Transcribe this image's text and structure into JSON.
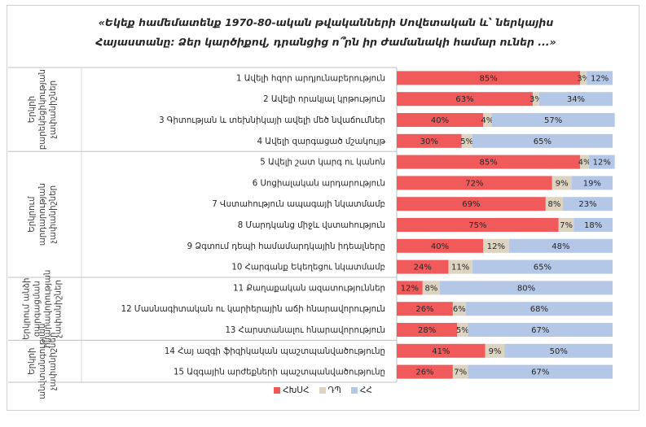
{
  "title": "«Եկեք համեմատենք 1970-80-ական թվականների Սովետական և՝ ներկայիս Հայաստանը: Ձեր կարծիքով, դրանցից ո՞րն իր ժամանակի համար ուներ ...»",
  "colors": {
    "s1": "#f15a5a",
    "s2": "#dcd3c0",
    "s3": "#b4c7e7"
  },
  "chart_data": {
    "type": "bar",
    "orientation": "horizontal",
    "stacked": true,
    "title": "«Եկեք համեմատենք 1970-80-ական թվականների Սովետական և՝ ներկայիս Հայաստանը: Ձեր կարծիքով, դրանցից ո՞րն իր ժամանակի համար ուներ ...»",
    "xlim": [
      0,
      100
    ],
    "legend_position": "bottom",
    "groups": [
      {
        "label": "Երկրի բարեկեցիկության չափանիշներ",
        "start": 0,
        "end": 3
      },
      {
        "label": "Երկրում արդարության չափանիշներ",
        "start": 4,
        "end": 9
      },
      {
        "label": "Երկրում անձի զարգացման հնարավորության չափանիշներ",
        "start": 10,
        "end": 12
      },
      {
        "label": "Երկրի անվտանգության չափանիշներ",
        "start": 13,
        "end": 14
      }
    ],
    "categories": [
      "1 Ավելի հզոր արդյունաբերություն",
      "2 Ավելի որակյալ կրթություն",
      "3 Գիտության և տեխնիկայի ավելի մեծ նվաճումներ",
      "4 Ավելի զարգացած մշակույթ",
      "5 Ավելի շատ կարգ ու կանոն",
      "6 Սոցիալական արդարություն",
      "7 Վստահություն ապագայի նկատմամբ",
      "8 Մարդկանց միջև վստահություն",
      "9 Ձգտում դեպի համամարդկային իդեալները",
      "10 Հարգանք Եկեղեցու նկատմամբ",
      "11 Քաղաքական ազատություններ",
      "12 Մասնագիտական ու կարիերային աճի հնարավորություն",
      "13 Հարստանալու հնարավորություն",
      "14 Հայ ազգի ֆիզիկական պաշտպանվածությունը",
      "15 Ազգային արժեքների պաշտպանվածությունը"
    ],
    "series": [
      {
        "name": "ՀԽՍՀ",
        "values": [
          85,
          63,
          40,
          30,
          85,
          72,
          69,
          75,
          40,
          24,
          12,
          26,
          28,
          41,
          26
        ]
      },
      {
        "name": "ԴՊ",
        "values": [
          3,
          3,
          4,
          5,
          4,
          9,
          8,
          7,
          12,
          11,
          8,
          6,
          5,
          9,
          7
        ]
      },
      {
        "name": "ՀՀ",
        "values": [
          12,
          34,
          57,
          65,
          12,
          19,
          23,
          18,
          48,
          65,
          80,
          68,
          67,
          50,
          67
        ]
      }
    ]
  }
}
